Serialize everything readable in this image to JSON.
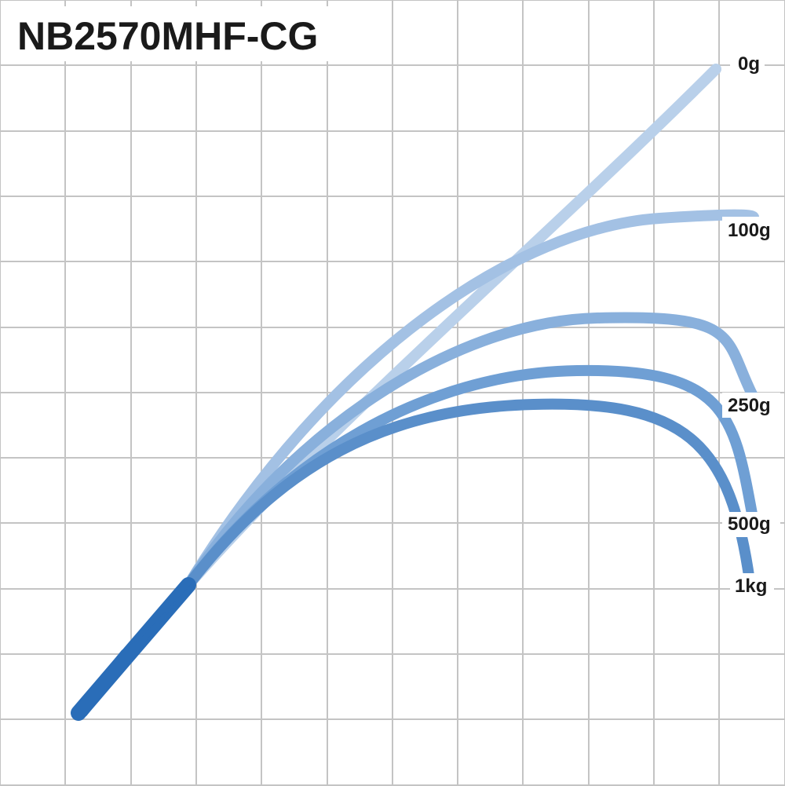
{
  "title": "NB2570MHF-CG",
  "accent_color": "#2a6db8",
  "grid_color": "#c4c4c4",
  "curves": [
    {
      "label": "0g",
      "color": "#b9d0ea"
    },
    {
      "label": "100g",
      "color": "#a3c1e4"
    },
    {
      "label": "250g",
      "color": "#89b0dc"
    },
    {
      "label": "500g",
      "color": "#6f9fd4"
    },
    {
      "label": "1kg",
      "color": "#5a8fca"
    }
  ]
}
